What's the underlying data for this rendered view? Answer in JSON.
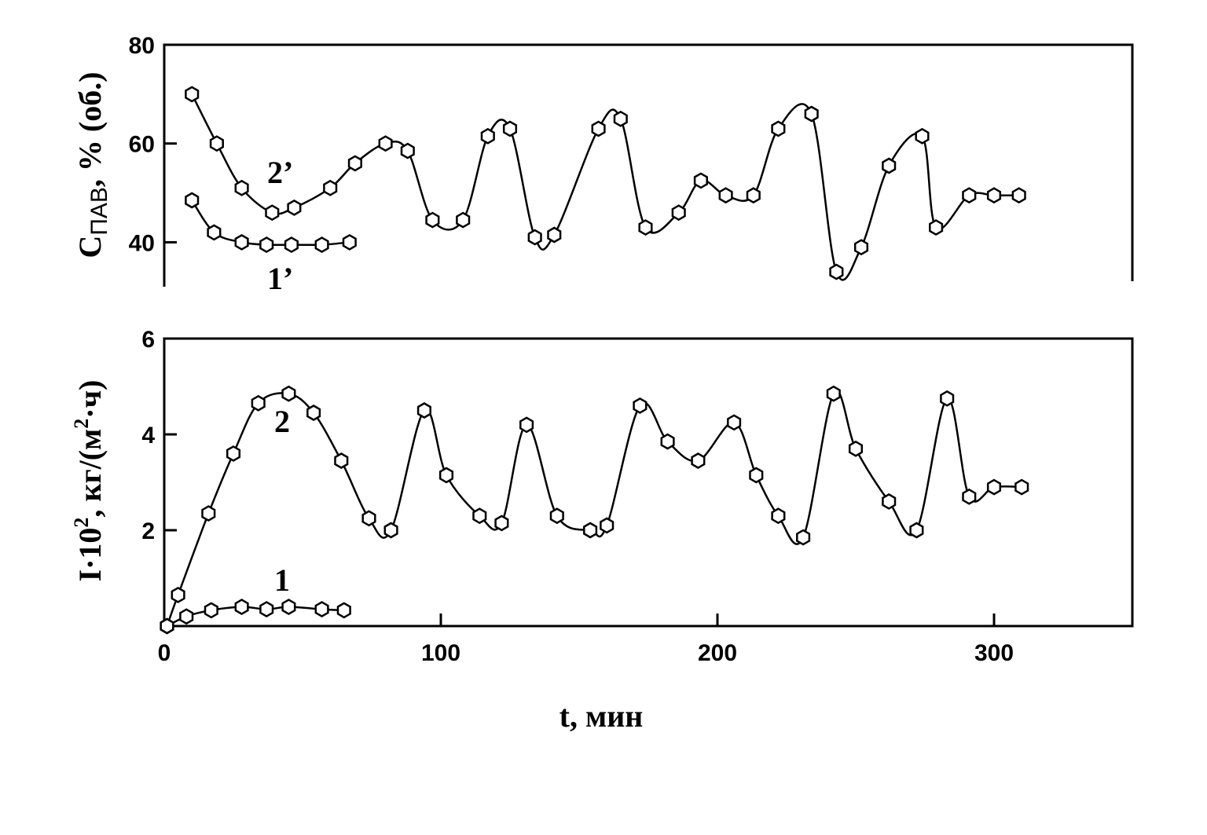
{
  "chart_data": [
    {
      "type": "line",
      "panel": "top",
      "ylabel": "C",
      "ylabel_sub": "ПАВ",
      "ylabel_rest": ", % (об.)",
      "xlim": [
        0,
        350
      ],
      "ylim": [
        31,
        80
      ],
      "yticks": [
        40,
        60,
        80
      ],
      "series": [
        {
          "name": "2’",
          "x": [
            10,
            19,
            28,
            39,
            47,
            60,
            69,
            80,
            88,
            97,
            108,
            117,
            125,
            134,
            141,
            157,
            165,
            174,
            186,
            194,
            203,
            213,
            222,
            234,
            243,
            252,
            262,
            274,
            279,
            291,
            300,
            309
          ],
          "y": [
            70,
            60,
            51,
            46,
            47,
            51,
            56,
            60,
            58.5,
            44.5,
            44.5,
            61.5,
            63,
            41,
            41.5,
            63,
            65,
            43,
            46,
            52.5,
            49.5,
            49.5,
            63,
            66,
            34,
            39,
            55.5,
            61.5,
            43,
            49.5,
            49.5,
            49.5
          ]
        },
        {
          "name": "1’",
          "x": [
            10,
            18,
            28,
            37,
            46,
            57,
            67
          ],
          "y": [
            48.5,
            42,
            40,
            39.5,
            39.5,
            39.5,
            40
          ]
        }
      ]
    },
    {
      "type": "line",
      "panel": "bottom",
      "ylabel": "I·10",
      "ylabel_sup": "2",
      "ylabel_rest": ", кг/(м",
      "ylabel_sup2": "2",
      "ylabel_end": "·ч)",
      "xlabel": "t, мин",
      "xlim": [
        0,
        350
      ],
      "ylim": [
        0,
        6
      ],
      "xticks": [
        0,
        100,
        200,
        300
      ],
      "yticks": [
        2,
        4,
        6
      ],
      "series": [
        {
          "name": "2",
          "x": [
            1,
            5,
            16,
            25,
            34,
            45,
            54,
            64,
            74,
            82,
            94,
            102,
            114,
            122,
            131,
            142,
            154,
            160,
            172,
            182,
            193,
            206,
            214,
            222,
            231,
            242,
            250,
            262,
            272,
            283,
            291,
            300,
            310
          ],
          "y": [
            0,
            0.65,
            2.35,
            3.6,
            4.65,
            4.85,
            4.45,
            3.45,
            2.25,
            2.0,
            4.5,
            3.15,
            2.3,
            2.15,
            4.2,
            2.3,
            2.0,
            2.1,
            4.6,
            3.85,
            3.45,
            4.25,
            3.15,
            2.3,
            1.85,
            4.85,
            3.7,
            2.6,
            2.0,
            4.75,
            2.7,
            2.9,
            2.9
          ]
        },
        {
          "name": "1",
          "x": [
            1,
            8,
            17,
            28,
            37,
            45,
            57,
            65
          ],
          "y": [
            0,
            0.2,
            0.33,
            0.4,
            0.35,
            0.4,
            0.35,
            0.33
          ]
        }
      ]
    }
  ]
}
